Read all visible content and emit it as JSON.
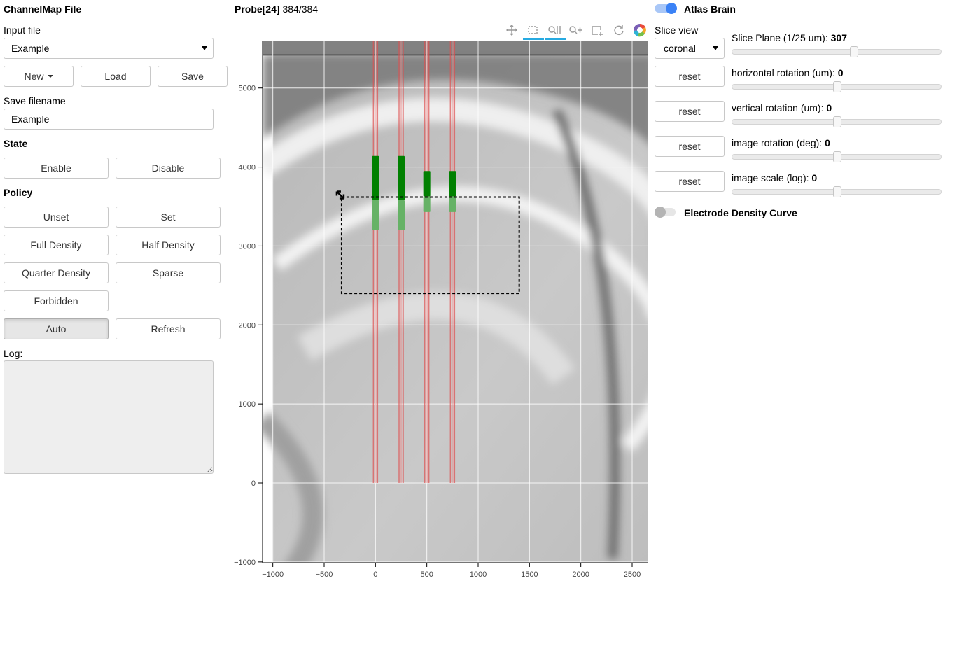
{
  "left": {
    "channelmap_title": "ChannelMap File",
    "input_file_label": "Input file",
    "input_file_value": "Example",
    "new_label": "New",
    "load_label": "Load",
    "save_label": "Save",
    "save_filename_label": "Save filename",
    "save_filename_value": "Example",
    "state_title": "State",
    "enable_label": "Enable",
    "disable_label": "Disable",
    "policy_title": "Policy",
    "unset_label": "Unset",
    "set_label": "Set",
    "full_density_label": "Full Density",
    "half_density_label": "Half Density",
    "quarter_density_label": "Quarter Density",
    "sparse_label": "Sparse",
    "forbidden_label": "Forbidden",
    "auto_label": "Auto",
    "refresh_label": "Refresh",
    "log_label": "Log:",
    "log_value": ""
  },
  "plot": {
    "probe_title": "Probe[24]",
    "probe_count": "384/384",
    "toolbar_icons": [
      "pan-icon",
      "box-select-icon",
      "wheel-zoom-x-icon",
      "wheel-zoom-y-icon",
      "box-zoom-icon",
      "reset-icon",
      "bokeh-logo-icon"
    ],
    "x_ticks": [
      -1000,
      -500,
      0,
      500,
      1000,
      1500,
      2000,
      2500
    ],
    "y_ticks": [
      -1000,
      0,
      1000,
      2000,
      3000,
      4000,
      5000
    ],
    "x_range": [
      -1100,
      2650
    ],
    "y_range": [
      -1010,
      5600
    ],
    "image_top_y": 5420,
    "shanks": [
      {
        "x": 0,
        "dark": [
          3580,
          4140
        ],
        "light": [
          3200,
          3580
        ]
      },
      {
        "x": 250,
        "dark": [
          3580,
          4140
        ],
        "light": [
          3200,
          3580
        ]
      },
      {
        "x": 500,
        "dark": [
          3630,
          3950
        ],
        "light": [
          3430,
          3630
        ]
      },
      {
        "x": 750,
        "dark": [
          3630,
          3950
        ],
        "light": [
          3430,
          3630
        ]
      }
    ],
    "shank_line_bottom": 0,
    "selection_box": {
      "x0": -330,
      "x1": 1400,
      "y0": 2400,
      "y1": 3620
    }
  },
  "right": {
    "atlas_brain_label": "Atlas Brain",
    "atlas_brain_on": true,
    "slice_view_label": "Slice view",
    "slice_view_value": "coronal",
    "reset_label": "reset",
    "sliders": [
      {
        "label": "Slice Plane (1/25 um):",
        "value": "307",
        "fraction": 0.58
      },
      {
        "label": "horizontal rotation (um):",
        "value": "0",
        "fraction": 0.5
      },
      {
        "label": "vertical rotation (um):",
        "value": "0",
        "fraction": 0.5
      },
      {
        "label": "image rotation (deg):",
        "value": "0",
        "fraction": 0.5
      },
      {
        "label": "image scale (log):",
        "value": "0",
        "fraction": 0.5
      }
    ],
    "density_curve_label": "Electrode Density Curve",
    "density_curve_on": false
  },
  "colors": {
    "accent": "#3b82f6",
    "shank_dark": "#008000",
    "shank_light": "#66b266",
    "probe_line": "#e05050"
  }
}
